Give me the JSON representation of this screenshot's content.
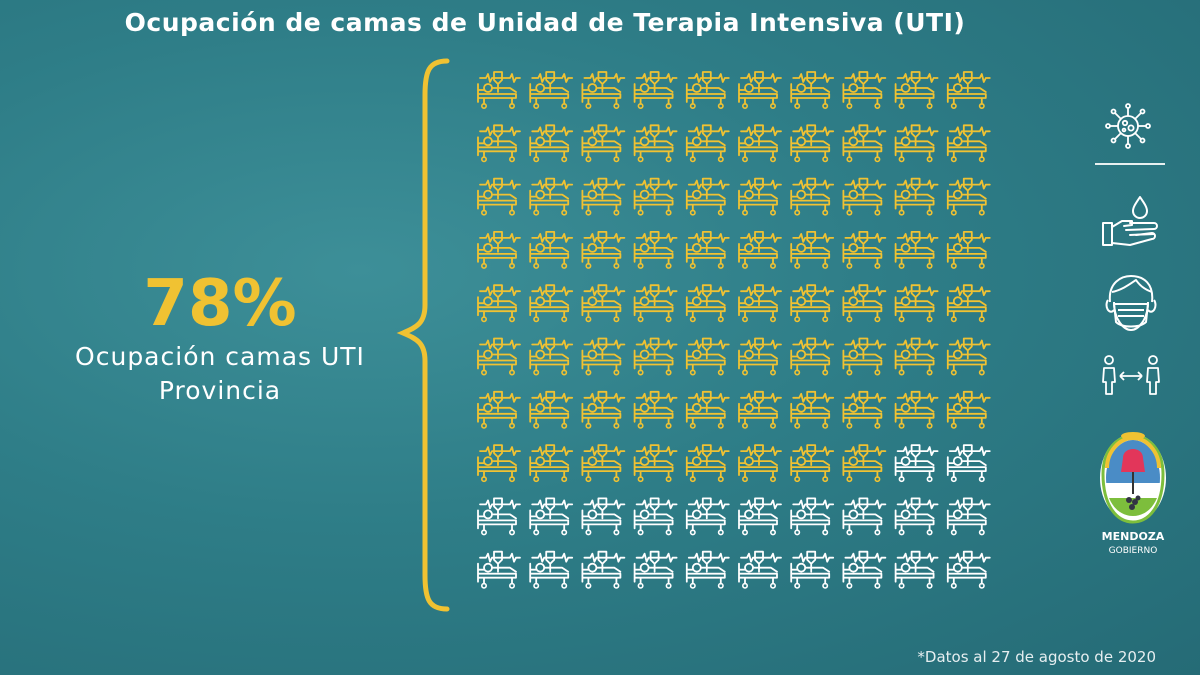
{
  "title": "Ocupación de camas de Unidad de Terapia Intensiva (UTI)",
  "stat": {
    "percent": "78%",
    "label_line1": "Ocupación camas UTI",
    "label_line2": "Provincia"
  },
  "chart_data": {
    "type": "pictogram",
    "total_icons": 100,
    "occupied_percent": 78,
    "rows": 10,
    "cols": 10,
    "occupied_color": "#f0c232",
    "free_color": "#ffffff"
  },
  "icons": {
    "virus": "virus-icon",
    "handwash": "hand-wash-icon",
    "mask": "face-mask-icon",
    "distance": "social-distance-icon"
  },
  "logo": {
    "line1": "MENDOZA",
    "line2": "GOBIERNO"
  },
  "footnote": "*Datos al 27 de agosto de 2020",
  "colors": {
    "accent": "#f0c232",
    "background": "#2e7d87"
  }
}
